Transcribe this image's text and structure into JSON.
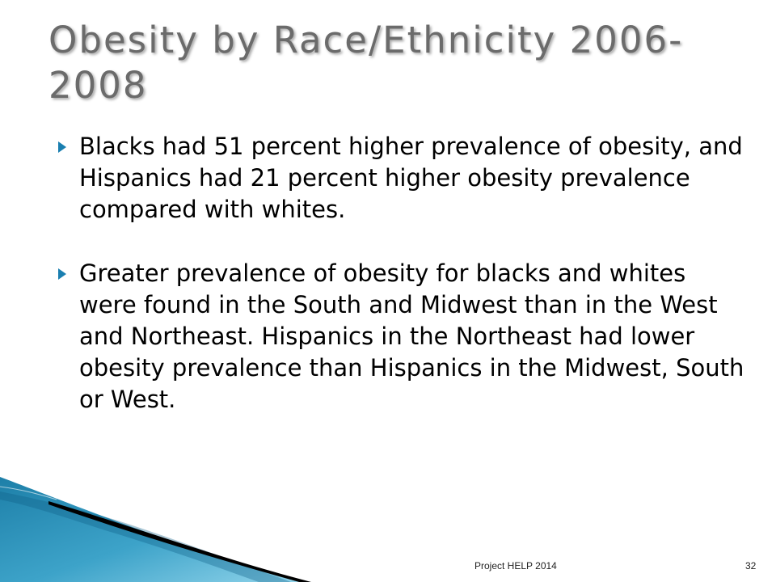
{
  "slide": {
    "title": "Obesity by Race/Ethnicity 2006-2008",
    "bullets": [
      "Blacks had 51 percent higher prevalence of obesity, and Hispanics had 21 percent higher obesity prevalence compared with whites.",
      "Greater prevalence of obesity for blacks and whites were found in the South and Midwest than in the West and Northeast. Hispanics in the Northeast had lower obesity prevalence than Hispanics in the Midwest, South or West."
    ],
    "footer": "Project HELP 2014",
    "page_number": "32"
  },
  "colors": {
    "accent": "#1a7fb0",
    "title": "#6b6b6b"
  },
  "icons": {
    "bullet": "triangle-bullet-icon"
  }
}
